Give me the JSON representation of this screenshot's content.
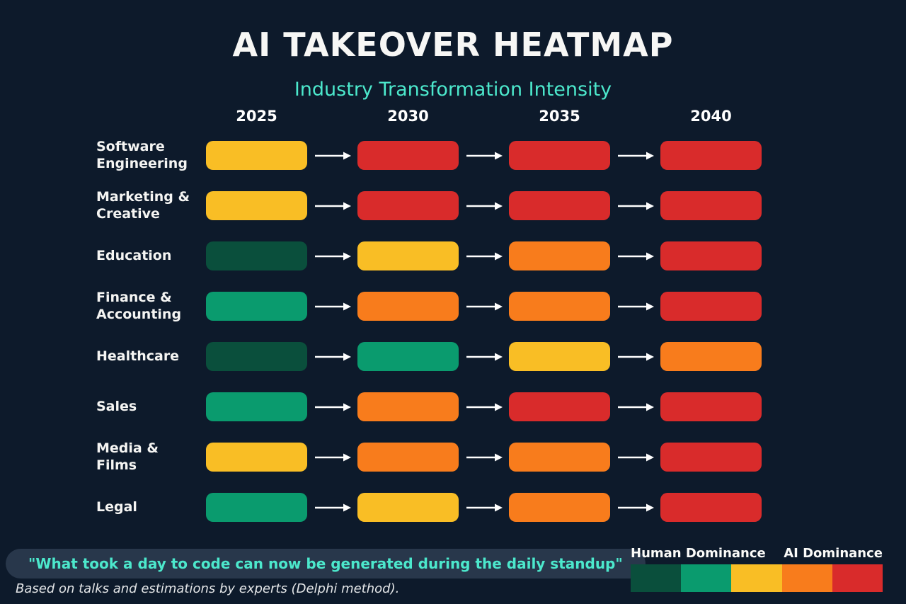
{
  "page": {
    "title": "AI TAKEOVER HEATMAP",
    "subtitle": "Industry Transformation Intensity",
    "quote": "\"What took a day to code can now be generated during the daily standup\"",
    "footnote": "Based on talks and estimations by experts (Delphi method)."
  },
  "legend": {
    "left_label": "Human Dominance",
    "right_label": "AI Dominance"
  },
  "colors": {
    "background": "#0D1A2B",
    "title_text": "#F7F7F5",
    "accent_teal": "#4CE8CC",
    "quote_pill_bg": "#28374B",
    "arrow": "#FFFFFF",
    "scale": [
      "#0A4F3C",
      "#0A9B6E",
      "#F9BE25",
      "#F87C1C",
      "#D92B2B"
    ]
  },
  "chart_data": {
    "type": "heatmap",
    "title": "AI TAKEOVER HEATMAP",
    "subtitle": "Industry Transformation Intensity",
    "x": [
      "2025",
      "2030",
      "2035",
      "2040"
    ],
    "intensity_scale": {
      "levels": [
        1,
        2,
        3,
        4,
        5
      ],
      "level_colors": [
        "#0A4F3C",
        "#0A9B6E",
        "#F9BE25",
        "#F87C1C",
        "#D92B2B"
      ],
      "low_label": "Human Dominance",
      "high_label": "AI Dominance"
    },
    "rows": [
      {
        "label": "Software Engineering",
        "levels": [
          3,
          5,
          5,
          5
        ]
      },
      {
        "label": "Marketing & Creative",
        "levels": [
          3,
          5,
          5,
          5
        ]
      },
      {
        "label": "Education",
        "levels": [
          1,
          3,
          4,
          5
        ]
      },
      {
        "label": "Finance & Accounting",
        "levels": [
          2,
          4,
          4,
          5
        ]
      },
      {
        "label": "Healthcare",
        "levels": [
          1,
          2,
          3,
          4
        ]
      },
      {
        "label": "Sales",
        "levels": [
          2,
          4,
          5,
          5
        ]
      },
      {
        "label": "Media & Films",
        "levels": [
          3,
          4,
          4,
          5
        ]
      },
      {
        "label": "Legal",
        "levels": [
          2,
          3,
          4,
          5
        ]
      }
    ],
    "annotations": [
      "\"What took a day to code can now be generated during the daily standup\"",
      "Based on talks and estimations by experts (Delphi method)."
    ],
    "legend_position": "bottom-right",
    "grid": false
  }
}
